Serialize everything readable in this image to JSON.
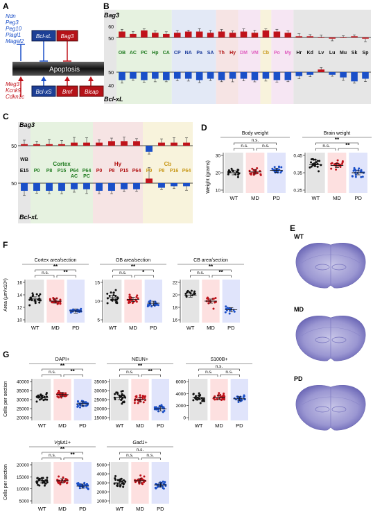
{
  "colors": {
    "red": "#c0121a",
    "blue": "#1a4fc8",
    "darkred": "#b01010",
    "green": "#1e7a1e",
    "pink": "#e060c0",
    "gold": "#c89818",
    "navy": "#1a3a9a",
    "gray": "#9a9a9a",
    "wt_bg": "#e4e4e4",
    "md_bg": "#fde0e0",
    "pd_bg": "#e0e4fb"
  },
  "panelA": {
    "letter": "A",
    "left_genes_blue": [
      "Ndn",
      "Peg3",
      "Peg10",
      "Plagl1",
      "Magel2"
    ],
    "left_genes_red": [
      "Meg3",
      "Kcnk9",
      "Cdkn1c"
    ],
    "box_bclxl": "Bcl-xL",
    "box_bag3": "Bag3",
    "box_bclxs": "Bcl-xS",
    "box_bmf": "Bmf",
    "box_blcap": "Blcap",
    "center": "Apoptosis"
  },
  "panelB": {
    "letter": "B",
    "top_label": "Bag3",
    "bottom_label": "Bcl-xL",
    "ticks_top": [
      "60",
      "50"
    ],
    "ticks_bottom": [
      "50",
      "40"
    ],
    "tissues": [
      {
        "t": "OB",
        "c": "green"
      },
      {
        "t": "AC",
        "c": "green"
      },
      {
        "t": "PC",
        "c": "green"
      },
      {
        "t": "Hp",
        "c": "green"
      },
      {
        "t": "CA",
        "c": "green"
      },
      {
        "t": "CP",
        "c": "navy"
      },
      {
        "t": "NA",
        "c": "navy"
      },
      {
        "t": "Pa",
        "c": "navy"
      },
      {
        "t": "SA",
        "c": "navy"
      },
      {
        "t": "Th",
        "c": "darkred"
      },
      {
        "t": "Hy",
        "c": "darkred"
      },
      {
        "t": "DM",
        "c": "pink"
      },
      {
        "t": "VM",
        "c": "pink"
      },
      {
        "t": "Cb",
        "c": "gold"
      },
      {
        "t": "Po",
        "c": "pink"
      },
      {
        "t": "My",
        "c": "pink"
      },
      {
        "t": "Hr",
        "c": "black"
      },
      {
        "t": "Kd",
        "c": "black"
      },
      {
        "t": "Lv",
        "c": "black"
      },
      {
        "t": "Lu",
        "c": "black"
      },
      {
        "t": "Mu",
        "c": "black"
      },
      {
        "t": "Sk",
        "c": "black"
      },
      {
        "t": "Sp",
        "c": "black"
      }
    ],
    "bag3_values": [
      55,
      53,
      56,
      54,
      53,
      54,
      55,
      55,
      54,
      55,
      54,
      55,
      54,
      56,
      55,
      54,
      51,
      51,
      50,
      49,
      50,
      51,
      49
    ],
    "bclxl_values": [
      44,
      45,
      44,
      45,
      44,
      45,
      45,
      44,
      45,
      44,
      45,
      45,
      44,
      45,
      44,
      44,
      47,
      48,
      52,
      48,
      46,
      43,
      45
    ]
  },
  "panelC": {
    "letter": "C",
    "top_label": "Bag3",
    "bottom_label": "Bcl-xL",
    "tick_top": "50",
    "tick_bottom": "50",
    "cols": [
      {
        "l1": "WB",
        "l2": "E15",
        "c": "black"
      },
      {
        "l1": "",
        "l2": "P0",
        "c": "green"
      },
      {
        "l1": "",
        "l2": "P8",
        "c": "green"
      },
      {
        "l1": "",
        "l2": "P15",
        "c": "green"
      },
      {
        "l1": "",
        "l2": "P64",
        "c": "green",
        "l3": "AC"
      },
      {
        "l1": "",
        "l2": "P64",
        "c": "green",
        "l3": "PC"
      },
      {
        "l1": "",
        "l2": "P0",
        "c": "darkred"
      },
      {
        "l1": "",
        "l2": "P8",
        "c": "darkred"
      },
      {
        "l1": "",
        "l2": "P15",
        "c": "darkred"
      },
      {
        "l1": "",
        "l2": "P64",
        "c": "darkred"
      },
      {
        "l1": "",
        "l2": "P0",
        "c": "gold"
      },
      {
        "l1": "",
        "l2": "P8",
        "c": "gold"
      },
      {
        "l1": "",
        "l2": "P16",
        "c": "gold"
      },
      {
        "l1": "",
        "l2": "P64",
        "c": "gold"
      }
    ],
    "group_labels": [
      {
        "t": "Cortex",
        "c": "green"
      },
      {
        "t": "Hy",
        "c": "darkred"
      },
      {
        "t": "Cb",
        "c": "gold"
      }
    ],
    "bag3_values": [
      51,
      51,
      51,
      51,
      52,
      52,
      52,
      53,
      53,
      53,
      46,
      52,
      52,
      52
    ],
    "bclxl_values": [
      45,
      45,
      45,
      45,
      46,
      46,
      45,
      45,
      46,
      46,
      53,
      47,
      48,
      48
    ]
  },
  "panelD": {
    "letter": "D",
    "ylabel": "Weight (grams)",
    "plots": [
      {
        "title": "Body weight",
        "ticks": [
          "30",
          "20",
          "10"
        ],
        "sig_top": "n.s.",
        "sig_left": "n.s.",
        "sig_right": "n.s.",
        "groups": [
          "WT",
          "MD",
          "PD"
        ]
      },
      {
        "title": "Brain weight",
        "ticks": [
          "0.45",
          "0.35",
          "0.25"
        ],
        "sig_top": "**",
        "sig_left": "n.s.",
        "sig_right": "**",
        "groups": [
          "WT",
          "MD",
          "PD"
        ]
      }
    ],
    "chart_data": [
      {
        "type": "scatter",
        "title": "Body weight",
        "categories": [
          "WT",
          "MD",
          "PD"
        ],
        "means": [
          23.5,
          24.5,
          25
        ],
        "ylabel": "Weight (grams)"
      },
      {
        "type": "scatter",
        "title": "Brain weight",
        "categories": [
          "WT",
          "MD",
          "PD"
        ],
        "means": [
          0.42,
          0.41,
          0.37
        ],
        "ylabel": "Weight (grams)"
      }
    ]
  },
  "panelE": {
    "letter": "E",
    "labels": [
      "WT",
      "MD",
      "PD"
    ]
  },
  "panelF": {
    "letter": "F",
    "ylabel": "Area (μm²x10⁶)",
    "plots": [
      {
        "title": "Cortex area/section",
        "ticks": [
          "16",
          "14",
          "12",
          "10"
        ],
        "sig_top": "**",
        "sig_left": "n.s.",
        "sig_right": "**",
        "groups": [
          "WT",
          "MD",
          "PD"
        ]
      },
      {
        "title": "OB area/section",
        "ticks": [
          "15",
          "10",
          "5"
        ],
        "sig_top": "**",
        "sig_left": "n.s.",
        "sig_right": "*",
        "groups": [
          "WT",
          "MD",
          "PD"
        ]
      },
      {
        "title": "CB area/section",
        "ticks": [
          "22",
          "20",
          "18",
          "16"
        ],
        "sig_top": "**",
        "sig_left": "n.s.",
        "sig_right": "**",
        "groups": [
          "WT",
          "MD",
          "PD"
        ]
      }
    ]
  },
  "panelG": {
    "letter": "G",
    "ylabel": "Cells per section",
    "plots": [
      {
        "title": "DAPI+",
        "ticks": [
          "40000",
          "35000",
          "30000",
          "25000",
          "20000"
        ],
        "sig_top": "**",
        "sig_left": "n.s.",
        "sig_right": "**",
        "groups": [
          "WT",
          "MD",
          "PD"
        ]
      },
      {
        "title": "NEUN+",
        "ticks": [
          "35000",
          "30000",
          "25000",
          "20000",
          "15000"
        ],
        "sig_top": "**",
        "sig_left": "n.s.",
        "sig_right": "**",
        "groups": [
          "WT",
          "MD",
          "PD"
        ]
      },
      {
        "title": "S100B+",
        "ticks": [
          "6000",
          "4000",
          "2000",
          "0"
        ],
        "sig_top": "n.s.",
        "sig_left": "n.s.",
        "sig_right": "n.s.",
        "groups": [
          "WT",
          "MD",
          "PD"
        ]
      },
      {
        "title": "Vglut1+",
        "ticks": [
          "20000",
          "15000",
          "10000",
          "5000"
        ],
        "sig_top": "**",
        "sig_left": "n.s.",
        "sig_right": "**",
        "groups": [
          "WT",
          "MD",
          "PD"
        ]
      },
      {
        "title": "Gad1+",
        "ticks": [
          "5000",
          "4000",
          "3000",
          "2000",
          "1000"
        ],
        "sig_top": "n.s.",
        "sig_left": "n.s.",
        "sig_right": "n.s.",
        "groups": [
          "WT",
          "MD",
          "PD"
        ]
      }
    ]
  }
}
